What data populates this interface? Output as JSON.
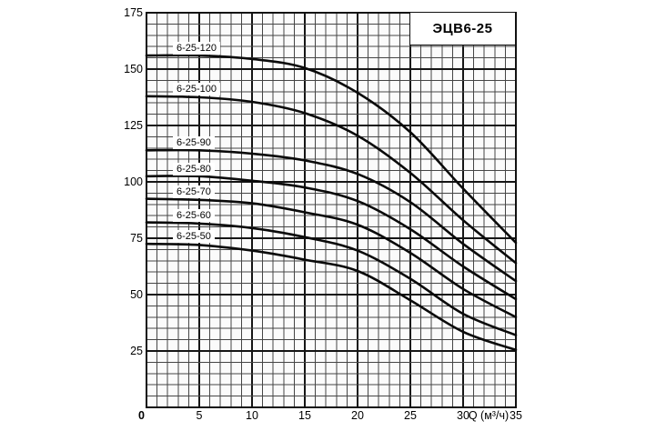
{
  "title_box": {
    "label": "ЭЦВ6-25"
  },
  "axes": {
    "origin_label": "0",
    "x_unit_label": "Q (м³/ч)",
    "x_tick_labels": [
      "5",
      "10",
      "15",
      "20",
      "25",
      "30"
    ],
    "x_end_label": "35",
    "y_tick_labels": [
      "25",
      "50",
      "75",
      "100",
      "125",
      "150",
      "175"
    ]
  },
  "colors": {
    "curve": "#0a0a0a",
    "grid_minor": "#454545",
    "grid_major": "#151515",
    "plot_border": "#111111",
    "plot_bg": "#fbfbfb",
    "text": "#000000"
  },
  "chart_data": {
    "type": "line",
    "title": "ЭЦВ6-25",
    "xlabel": "Q (м³/ч)",
    "ylabel": "",
    "xlim": [
      0,
      35
    ],
    "ylim": [
      0,
      175
    ],
    "x_ticks": [
      0,
      5,
      10,
      15,
      20,
      25,
      30,
      35
    ],
    "y_ticks": [
      0,
      25,
      50,
      75,
      100,
      125,
      150,
      175
    ],
    "grid": {
      "on": true,
      "x_minor_step": 1,
      "x_major_step": 5,
      "y_minor_step": 5,
      "y_major_step": 25
    },
    "legend_position": "inline-curve-labels",
    "x": [
      0,
      5,
      10,
      15,
      20,
      25,
      30,
      35
    ],
    "series": [
      {
        "name": "6-25-120",
        "values": [
          156,
          156,
          154.5,
          150.5,
          139.5,
          122,
          97,
          73
        ]
      },
      {
        "name": "6-25-100",
        "values": [
          138,
          137.5,
          135.5,
          130.5,
          120.5,
          104,
          83,
          64
        ]
      },
      {
        "name": "6-25-90",
        "values": [
          114,
          114,
          112.5,
          109.5,
          103.5,
          91,
          72.5,
          56
        ]
      },
      {
        "name": "6-25-80",
        "values": [
          102.5,
          102.5,
          100.5,
          97.5,
          91.5,
          79,
          62.5,
          48
        ]
      },
      {
        "name": "6-25-70",
        "values": [
          92.5,
          92,
          90.5,
          86.5,
          81,
          68.5,
          52.5,
          40
        ]
      },
      {
        "name": "6-25-60",
        "values": [
          82,
          81.5,
          79.5,
          75.5,
          69.5,
          57,
          41.5,
          32
        ]
      },
      {
        "name": "6-25-50",
        "values": [
          72.5,
          72,
          69.5,
          65.5,
          60.5,
          47.5,
          33.5,
          25.5
        ]
      }
    ]
  }
}
